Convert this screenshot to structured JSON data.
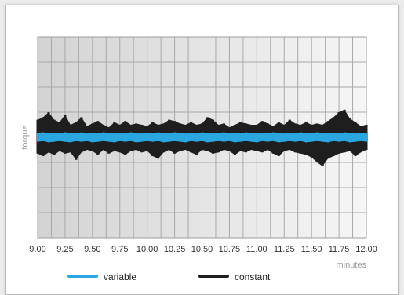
{
  "chart_data": {
    "type": "line",
    "title": "",
    "xlabel": "minutes",
    "ylabel": "torque",
    "xlim": [
      9.0,
      12.0
    ],
    "ylim": [
      -8,
      8
    ],
    "y_ticks_visible": false,
    "grid": true,
    "x_tick_labels": [
      "9.00",
      "9.25",
      "9.50",
      "9.75",
      "10.00",
      "10.25",
      "10.50",
      "10.75",
      "11.00",
      "11.25",
      "11.50",
      "11.75",
      "12.00"
    ],
    "x_ticks": [
      9.0,
      9.25,
      9.5,
      9.75,
      10.0,
      10.25,
      10.5,
      10.75,
      11.0,
      11.25,
      11.5,
      11.75,
      12.0
    ],
    "legend": {
      "placement": "bottom"
    },
    "series": [
      {
        "name": "constant",
        "color": "#1e1e1e",
        "baseline": 0,
        "x": [
          9.0,
          9.05,
          9.1,
          9.15,
          9.2,
          9.25,
          9.3,
          9.35,
          9.4,
          9.45,
          9.5,
          9.55,
          9.6,
          9.65,
          9.7,
          9.75,
          9.8,
          9.85,
          9.9,
          9.95,
          10.0,
          10.05,
          10.1,
          10.15,
          10.2,
          10.25,
          10.3,
          10.35,
          10.4,
          10.45,
          10.5,
          10.55,
          10.6,
          10.65,
          10.7,
          10.75,
          10.8,
          10.85,
          10.9,
          10.95,
          11.0,
          11.05,
          11.1,
          11.15,
          11.2,
          11.25,
          11.3,
          11.35,
          11.4,
          11.45,
          11.5,
          11.55,
          11.6,
          11.65,
          11.7,
          11.75,
          11.8,
          11.85,
          11.9,
          11.95,
          12.0
        ],
        "upper": [
          1.4,
          1.6,
          2.0,
          1.4,
          1.2,
          1.8,
          1.0,
          1.2,
          1.6,
          0.9,
          1.1,
          1.3,
          1.0,
          0.8,
          1.2,
          1.0,
          1.3,
          1.0,
          1.1,
          1.0,
          0.9,
          1.2,
          1.0,
          1.1,
          1.4,
          1.3,
          1.1,
          1.0,
          1.2,
          1.0,
          1.1,
          1.6,
          1.4,
          1.0,
          1.1,
          0.8,
          1.0,
          1.2,
          1.1,
          1.0,
          1.0,
          1.3,
          1.1,
          0.9,
          1.2,
          1.0,
          1.4,
          1.1,
          1.0,
          1.2,
          1.0,
          1.1,
          1.0,
          1.3,
          1.6,
          2.0,
          2.2,
          1.5,
          1.2,
          0.9,
          1.0
        ],
        "lower": [
          -1.3,
          -1.5,
          -1.2,
          -1.4,
          -1.1,
          -1.3,
          -1.2,
          -1.8,
          -1.2,
          -1.0,
          -1.1,
          -1.4,
          -1.0,
          -1.3,
          -1.1,
          -1.2,
          -1.4,
          -1.1,
          -1.0,
          -1.2,
          -1.1,
          -1.5,
          -1.7,
          -1.2,
          -1.0,
          -1.3,
          -1.1,
          -1.0,
          -1.2,
          -1.4,
          -1.0,
          -1.1,
          -1.3,
          -1.2,
          -1.0,
          -1.1,
          -1.4,
          -1.1,
          -1.2,
          -1.0,
          -1.1,
          -1.2,
          -1.0,
          -1.3,
          -1.5,
          -1.1,
          -1.0,
          -1.2,
          -1.3,
          -1.4,
          -1.6,
          -2.0,
          -2.3,
          -1.7,
          -1.5,
          -1.3,
          -1.2,
          -1.1,
          -1.5,
          -1.2,
          -1.0
        ]
      },
      {
        "name": "variable",
        "color": "#2aa7e1",
        "baseline": 0,
        "x": [
          9.0,
          9.05,
          9.1,
          9.15,
          9.2,
          9.25,
          9.3,
          9.35,
          9.4,
          9.45,
          9.5,
          9.55,
          9.6,
          9.65,
          9.7,
          9.75,
          9.8,
          9.85,
          9.9,
          9.95,
          10.0,
          10.05,
          10.1,
          10.15,
          10.2,
          10.25,
          10.3,
          10.35,
          10.4,
          10.45,
          10.5,
          10.55,
          10.6,
          10.65,
          10.7,
          10.75,
          10.8,
          10.85,
          10.9,
          10.95,
          11.0,
          11.05,
          11.1,
          11.15,
          11.2,
          11.25,
          11.3,
          11.35,
          11.4,
          11.45,
          11.5,
          11.55,
          11.6,
          11.65,
          11.7,
          11.75,
          11.8,
          11.85,
          11.9,
          11.95,
          12.0
        ],
        "upper": [
          0.35,
          0.4,
          0.3,
          0.35,
          0.3,
          0.4,
          0.35,
          0.3,
          0.4,
          0.3,
          0.35,
          0.3,
          0.4,
          0.35,
          0.3,
          0.35,
          0.3,
          0.4,
          0.35,
          0.3,
          0.35,
          0.3,
          0.4,
          0.35,
          0.3,
          0.4,
          0.35,
          0.3,
          0.35,
          0.3,
          0.4,
          0.35,
          0.3,
          0.35,
          0.4,
          0.3,
          0.35,
          0.3,
          0.4,
          0.35,
          0.3,
          0.35,
          0.3,
          0.4,
          0.35,
          0.3,
          0.35,
          0.3,
          0.4,
          0.35,
          0.3,
          0.4,
          0.35,
          0.3,
          0.35,
          0.3,
          0.4,
          0.35,
          0.3,
          0.35,
          0.3
        ],
        "lower": [
          -0.35,
          -0.3,
          -0.4,
          -0.35,
          -0.3,
          -0.35,
          -0.4,
          -0.3,
          -0.35,
          -0.3,
          -0.4,
          -0.35,
          -0.3,
          -0.35,
          -0.4,
          -0.3,
          -0.35,
          -0.3,
          -0.4,
          -0.35,
          -0.3,
          -0.35,
          -0.3,
          -0.4,
          -0.35,
          -0.3,
          -0.35,
          -0.4,
          -0.3,
          -0.35,
          -0.3,
          -0.4,
          -0.35,
          -0.3,
          -0.35,
          -0.3,
          -0.4,
          -0.35,
          -0.3,
          -0.35,
          -0.4,
          -0.3,
          -0.35,
          -0.3,
          -0.4,
          -0.35,
          -0.3,
          -0.35,
          -0.3,
          -0.4,
          -0.35,
          -0.3,
          -0.35,
          -0.4,
          -0.3,
          -0.35,
          -0.3,
          -0.4,
          -0.35,
          -0.3,
          -0.35
        ]
      }
    ],
    "legend_entries": [
      {
        "label": "variable",
        "color": "#2aa7e1"
      },
      {
        "label": "constant",
        "color": "#1e1e1e"
      }
    ]
  }
}
